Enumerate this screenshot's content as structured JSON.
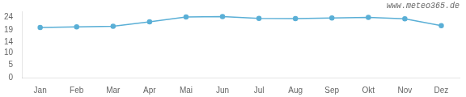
{
  "chart_data": {
    "type": "line",
    "categories": [
      "Jan",
      "Feb",
      "Mar",
      "Apr",
      "Mai",
      "Jun",
      "Jul",
      "Aug",
      "Sep",
      "Okt",
      "Nov",
      "Dez"
    ],
    "values": [
      20.0,
      20.3,
      20.5,
      22.3,
      24.2,
      24.4,
      23.7,
      23.6,
      23.8,
      24.1,
      23.5,
      20.8
    ],
    "color": "#5aafd6",
    "marker": "circle",
    "ylim": [
      0,
      26.5
    ],
    "yticks": [
      0,
      5,
      10,
      14,
      19,
      24
    ],
    "grid": false,
    "annotations": [
      "www.meteo365.de"
    ]
  }
}
